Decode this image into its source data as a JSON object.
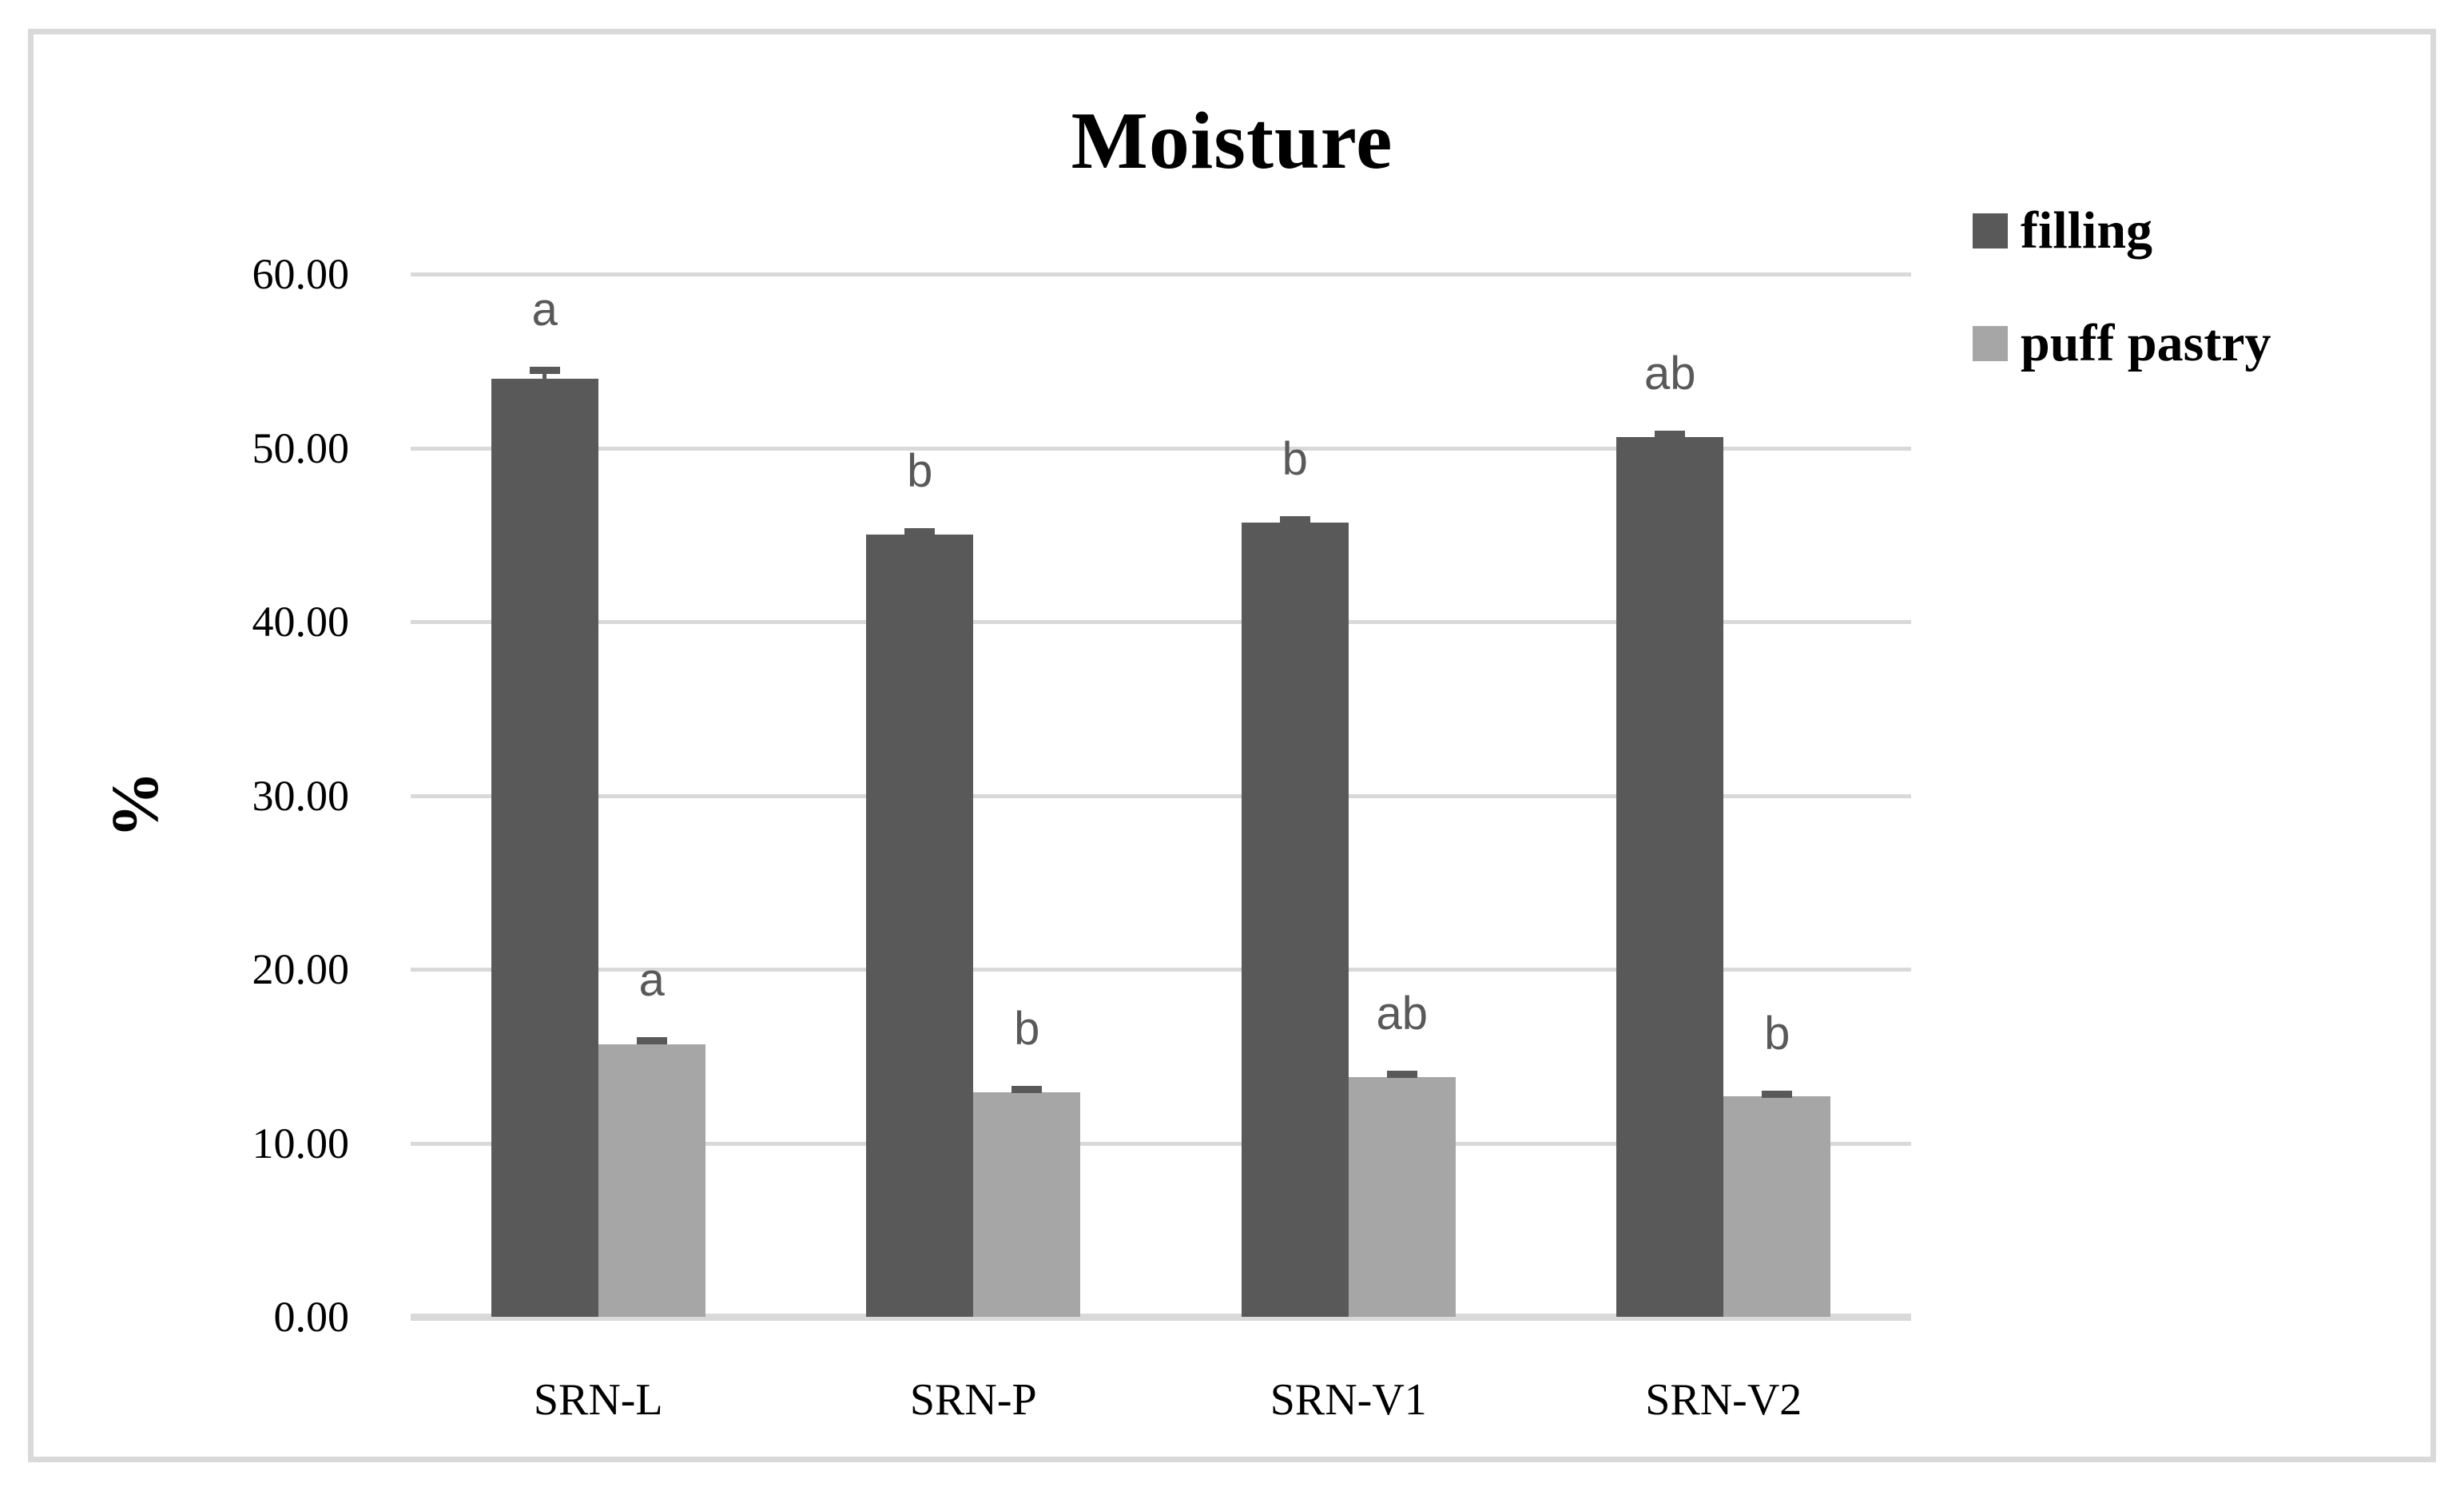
{
  "chart_data": {
    "type": "bar",
    "title": "Moisture",
    "ylabel": "%",
    "xlabel": "",
    "categories": [
      "SRN-L",
      "SRN-P",
      "SRN-V1",
      "SRN-V2"
    ],
    "ylim": [
      0,
      60
    ],
    "grid": true,
    "legend_position": "right",
    "gridline_color": "#d9d9d9",
    "annotation_color": "#595959",
    "y_ticks": [
      {
        "label": "0.00",
        "value": 0
      },
      {
        "label": "10.00",
        "value": 10
      },
      {
        "label": "20.00",
        "value": 20
      },
      {
        "label": "30.00",
        "value": 30
      },
      {
        "label": "40.00",
        "value": 40
      },
      {
        "label": "50.00",
        "value": 50
      },
      {
        "label": "60.00",
        "value": 60
      }
    ],
    "series": [
      {
        "name": "filling",
        "color": "#595959",
        "values": [
          54.0,
          45.0,
          45.7,
          50.6
        ],
        "errors": [
          0.5,
          0.2,
          0.2,
          0.2
        ],
        "sig_letters": [
          "a",
          "b",
          "b",
          "ab"
        ]
      },
      {
        "name": "puff pastry",
        "color": "#a6a6a6",
        "values": [
          15.7,
          12.9,
          13.8,
          12.7
        ],
        "errors": [
          0.2,
          0.2,
          0.2,
          0.15
        ],
        "sig_letters": [
          "a",
          "b",
          "ab",
          "b"
        ]
      }
    ]
  }
}
